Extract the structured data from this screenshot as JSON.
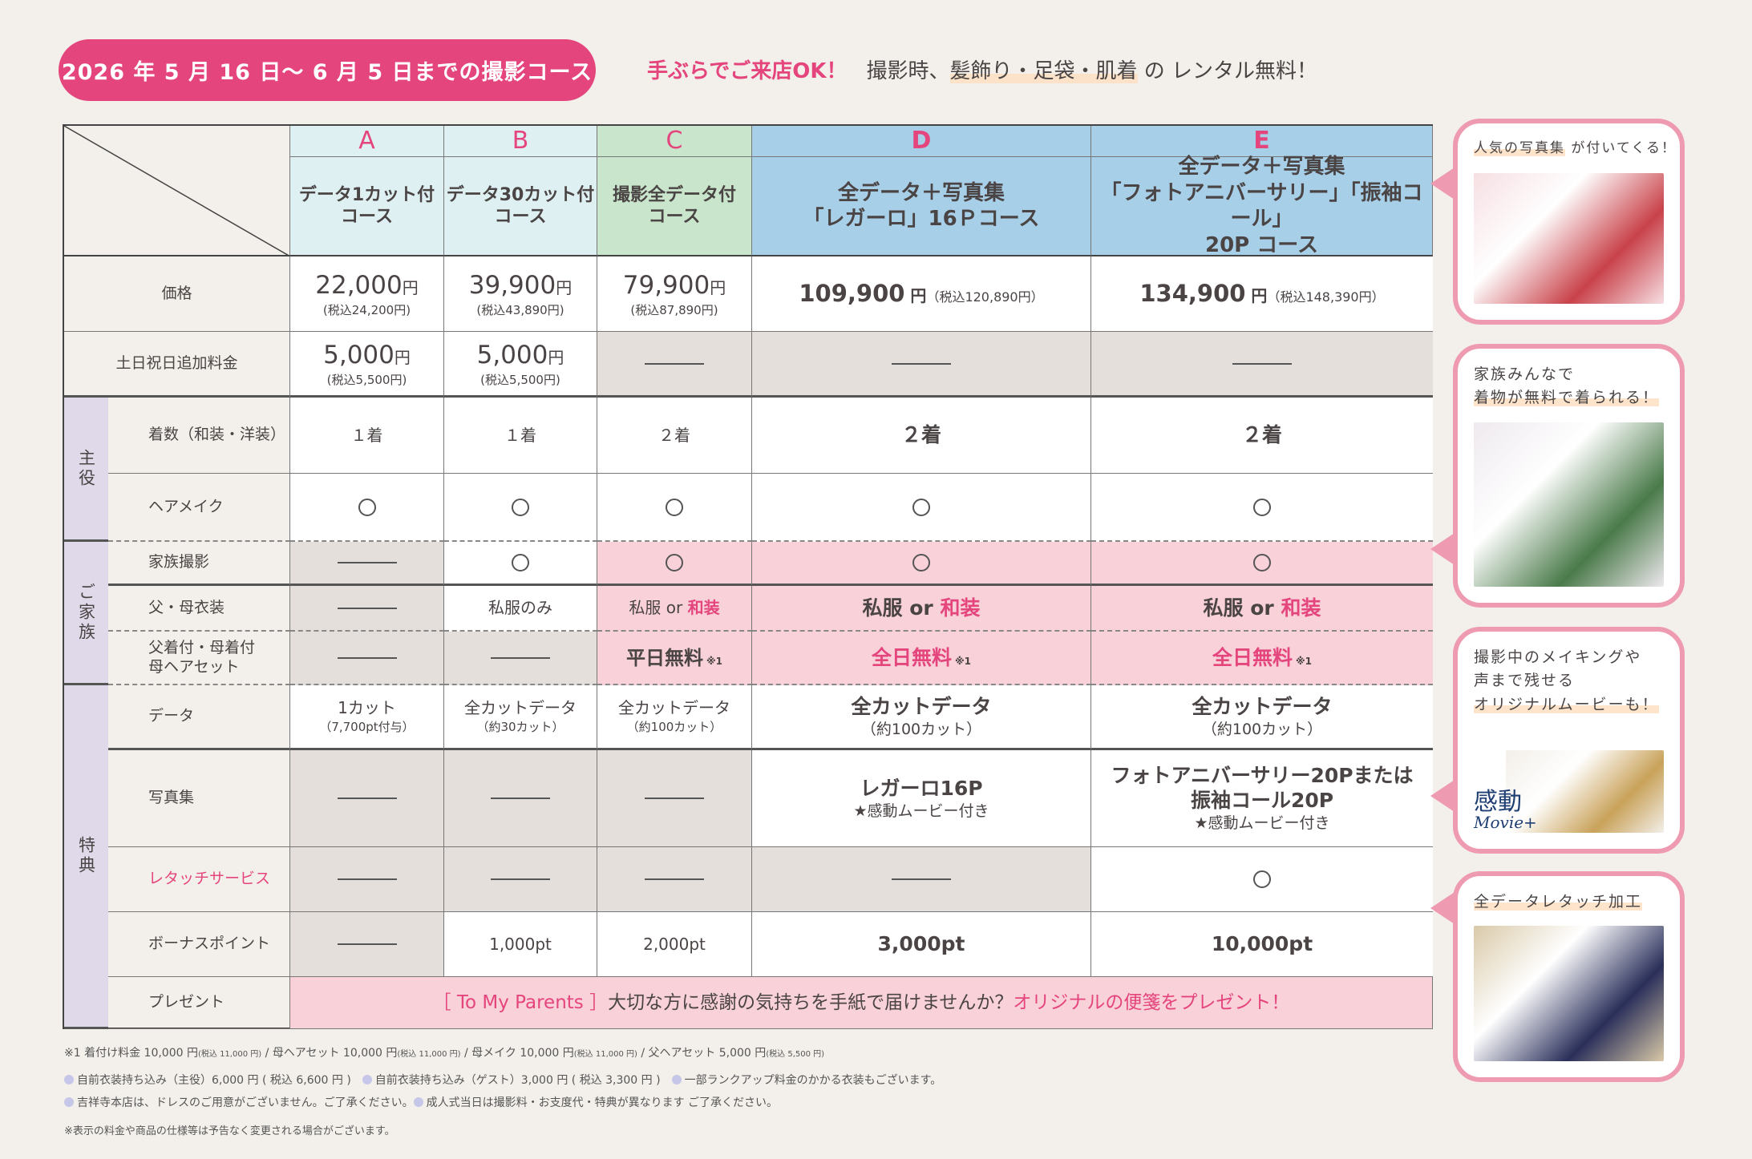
{
  "title": "2026 年 5 月 16 日〜 6 月 5 日までの撮影コース",
  "header_note": {
    "lead": "手ぶらでご来店OK！",
    "text1": "撮影時、",
    "highlight": "髪飾り・足袋・肌着",
    "text2": " の レンタル無料！"
  },
  "colors": {
    "accent": "#e5457d",
    "gray_cell": "#e5dfdc",
    "pink_cell": "#f8d1d9",
    "group": "#e0d9ea",
    "header_ab": "#dff0f3",
    "header_c": "#c9e5cc",
    "header_de": "#a8cfe8"
  },
  "columns": [
    {
      "letter": "A",
      "name": "データ1カット付\nコース"
    },
    {
      "letter": "B",
      "name": "データ30カット付\nコース"
    },
    {
      "letter": "C",
      "name": "撮影全データ付\nコース"
    },
    {
      "letter": "D",
      "name": "全データ＋写真集\n「レガーロ」16Ｐコース"
    },
    {
      "letter": "E",
      "name": "全データ＋写真集\n「フォトアニバーサリー」「振袖コール」\n20P コース"
    }
  ],
  "groups": [
    {
      "label": "主役"
    },
    {
      "label": "ご家族"
    },
    {
      "label": "特典"
    }
  ],
  "rows": [
    {
      "label": "価格",
      "cells": [
        {
          "type": "price",
          "main": "22,000",
          "unit": "円",
          "sub": "(税込24,200円)"
        },
        {
          "type": "price",
          "main": "39,900",
          "unit": "円",
          "sub": "(税込43,890円)"
        },
        {
          "type": "price",
          "main": "79,900",
          "unit": "円",
          "sub": "(税込87,890円)"
        },
        {
          "type": "price",
          "main": "109,900",
          "unit": " 円",
          "sub": "（税込120,890円）",
          "inline": true
        },
        {
          "type": "price",
          "main": "134,900",
          "unit": " 円",
          "sub": "（税込148,390円）",
          "inline": true
        }
      ]
    },
    {
      "label": "土日祝日追加料金",
      "cells": [
        {
          "type": "price",
          "main": "5,000",
          "unit": "円",
          "sub": "(税込5,500円)"
        },
        {
          "type": "price",
          "main": "5,000",
          "unit": "円",
          "sub": "(税込5,500円)"
        },
        {
          "type": "dash",
          "fill": "gray"
        },
        {
          "type": "dash",
          "fill": "gray"
        },
        {
          "type": "dash",
          "fill": "gray"
        }
      ]
    },
    {
      "label": "着数（和装・洋装）",
      "cells": [
        {
          "type": "text",
          "main": "１着"
        },
        {
          "type": "text",
          "main": "１着"
        },
        {
          "type": "text",
          "main": "２着"
        },
        {
          "type": "text",
          "main": "２着"
        },
        {
          "type": "text",
          "main": "２着"
        }
      ]
    },
    {
      "label": "ヘアメイク",
      "cells": [
        {
          "type": "circle"
        },
        {
          "type": "circle"
        },
        {
          "type": "circle"
        },
        {
          "type": "circle"
        },
        {
          "type": "circle"
        }
      ]
    },
    {
      "label": "家族撮影",
      "cells": [
        {
          "type": "dash",
          "fill": "gray"
        },
        {
          "type": "circle"
        },
        {
          "type": "circle",
          "fill": "pink"
        },
        {
          "type": "circle",
          "fill": "pink"
        },
        {
          "type": "circle",
          "fill": "pink"
        }
      ]
    },
    {
      "label": "父・母衣装",
      "cells": [
        {
          "type": "dash",
          "fill": "gray"
        },
        {
          "type": "text",
          "main": "私服のみ"
        },
        {
          "type": "text",
          "main": "私服 or ",
          "pink": "和装",
          "fill": "pink"
        },
        {
          "type": "text",
          "main": "私服 or ",
          "pink": "和装",
          "fill": "pink"
        },
        {
          "type": "text",
          "main": "私服 or ",
          "pink": "和装",
          "fill": "pink"
        }
      ]
    },
    {
      "label": "父着付・母着付\n母ヘアセット",
      "cells": [
        {
          "type": "dash",
          "fill": "gray"
        },
        {
          "type": "dash",
          "fill": "gray"
        },
        {
          "type": "text",
          "main": "平日無料",
          "note": "※1",
          "fill": "pink",
          "bold": true
        },
        {
          "type": "text",
          "pink": "全日無料",
          "note": "※1",
          "fill": "pink"
        },
        {
          "type": "text",
          "pink": "全日無料",
          "note": "※1",
          "fill": "pink"
        }
      ]
    },
    {
      "label": "データ",
      "cells": [
        {
          "type": "text",
          "main": "1カット",
          "sub": "（7,700pt付与）"
        },
        {
          "type": "text",
          "main": "全カットデータ",
          "sub": "（約30カット）"
        },
        {
          "type": "text",
          "main": "全カットデータ",
          "sub": "（約100カット）"
        },
        {
          "type": "text",
          "main": "全カットデータ",
          "sub": "（約100カット）"
        },
        {
          "type": "text",
          "main": "全カットデータ",
          "sub": "（約100カット）"
        }
      ]
    },
    {
      "label": "写真集",
      "cells": [
        {
          "type": "dash",
          "fill": "gray"
        },
        {
          "type": "dash",
          "fill": "gray"
        },
        {
          "type": "dash",
          "fill": "gray"
        },
        {
          "type": "text",
          "main": "レガーロ16P",
          "sub": "★感動ムービー付き"
        },
        {
          "type": "text",
          "main": "フォトアニバーサリー20Pまたは\n振袖コール20P",
          "sub": "★感動ムービー付き"
        }
      ]
    },
    {
      "label": "レタッチサービス",
      "label_pink": true,
      "cells": [
        {
          "type": "dash",
          "fill": "gray"
        },
        {
          "type": "dash",
          "fill": "gray"
        },
        {
          "type": "dash",
          "fill": "gray"
        },
        {
          "type": "dash",
          "fill": "gray"
        },
        {
          "type": "circle"
        }
      ]
    },
    {
      "label": "ボーナスポイント",
      "cells": [
        {
          "type": "dash",
          "fill": "gray"
        },
        {
          "type": "text",
          "main": "1,000pt"
        },
        {
          "type": "text",
          "main": "2,000pt"
        },
        {
          "type": "text",
          "main": "3,000pt"
        },
        {
          "type": "text",
          "main": "10,000pt"
        }
      ]
    },
    {
      "label": "プレゼント",
      "present": {
        "pink1": "［ To My Parents ］",
        "main": " 大切な方に感謝の気持ちを手紙で届けませんか？ ",
        "pink2": "オリジナルの便箋をプレゼント！"
      }
    }
  ],
  "callouts": [
    {
      "lines": [
        "",
        "人気の写真集"
      ],
      "rest": " が付いてくる！",
      "photo": "photo-album-image"
    },
    {
      "lines": [
        "家族みんなで",
        "着物が無料で着られる！"
      ],
      "photo": "family-kimono-image"
    },
    {
      "lines": [
        "撮影中のメイキングや",
        "声まで残せる",
        "オリジナルムービーも！"
      ],
      "photo": "movie-making-image",
      "logo": {
        "top": "感動",
        "bottom": "Movie+"
      }
    },
    {
      "lines": [
        "全データレタッチ加工"
      ],
      "photo": "retouch-portrait-image"
    }
  ],
  "footnotes": {
    "line1": [
      {
        "text": "※1 着付け料金 10,000 円",
        "small": "(税込 11,000 円)"
      },
      {
        "text": " / 母ヘアセット 10,000 円",
        "small": "(税込 11,000 円)"
      },
      {
        "text": " / 母メイク 10,000 円",
        "small": "(税込 11,000 円)"
      },
      {
        "text": " / 父ヘアセット 5,000 円",
        "small": "(税込 5,500 円)"
      }
    ],
    "line2": [
      "自前衣装持ち込み（主役）6,000 円 ( 税込 6,600 円 )",
      "自前衣装持ち込み（ゲスト）3,000 円 ( 税込 3,300 円 )",
      "一部ランクアップ料金のかかる衣装もございます。"
    ],
    "line3": [
      "吉祥寺本店は、ドレスのご用意がございません。ご了承ください。",
      "成人式当日は撮影料・お支度代・特典が異なります ご了承ください。"
    ],
    "line4": "※表示の料金や商品の仕様等は予告なく変更される場合がございます。"
  }
}
